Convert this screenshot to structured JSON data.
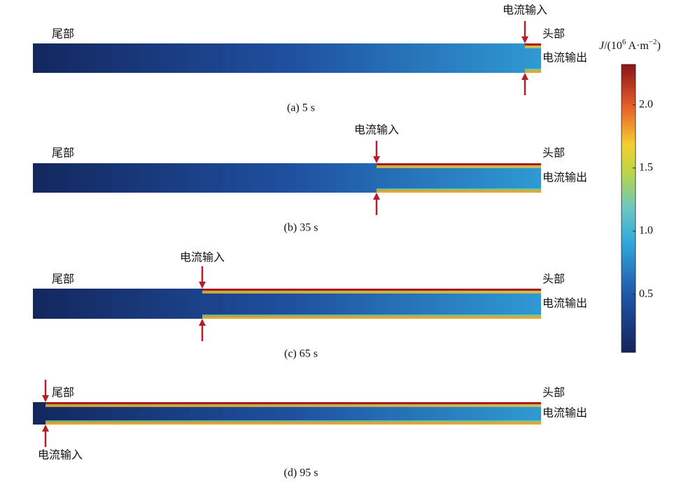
{
  "panels": [
    {
      "caption": "(a) 5 s",
      "tail": "尾部",
      "head": "头部",
      "output": "电流输出",
      "input": "电流输入"
    },
    {
      "caption": "(b) 35 s",
      "tail": "尾部",
      "head": "头部",
      "output": "电流输出",
      "input": "电流输入"
    },
    {
      "caption": "(c) 65 s",
      "tail": "尾部",
      "head": "头部",
      "output": "电流输出",
      "input": "电流输入"
    },
    {
      "caption": "(d) 95 s",
      "tail": "尾部",
      "head": "头部",
      "output": "电流输出",
      "input": "电流输入"
    }
  ],
  "colorbar": {
    "label": [
      "J",
      "/(10",
      "6",
      " A·m",
      "−2",
      ")"
    ],
    "range": [
      0.04,
      2.32
    ],
    "ticks": [
      {
        "value": 0.5,
        "label": "0.5"
      },
      {
        "value": 1,
        "label": "1.0"
      },
      {
        "value": 1.5,
        "label": "1.5"
      },
      {
        "value": 2,
        "label": "2.0"
      }
    ]
  }
}
